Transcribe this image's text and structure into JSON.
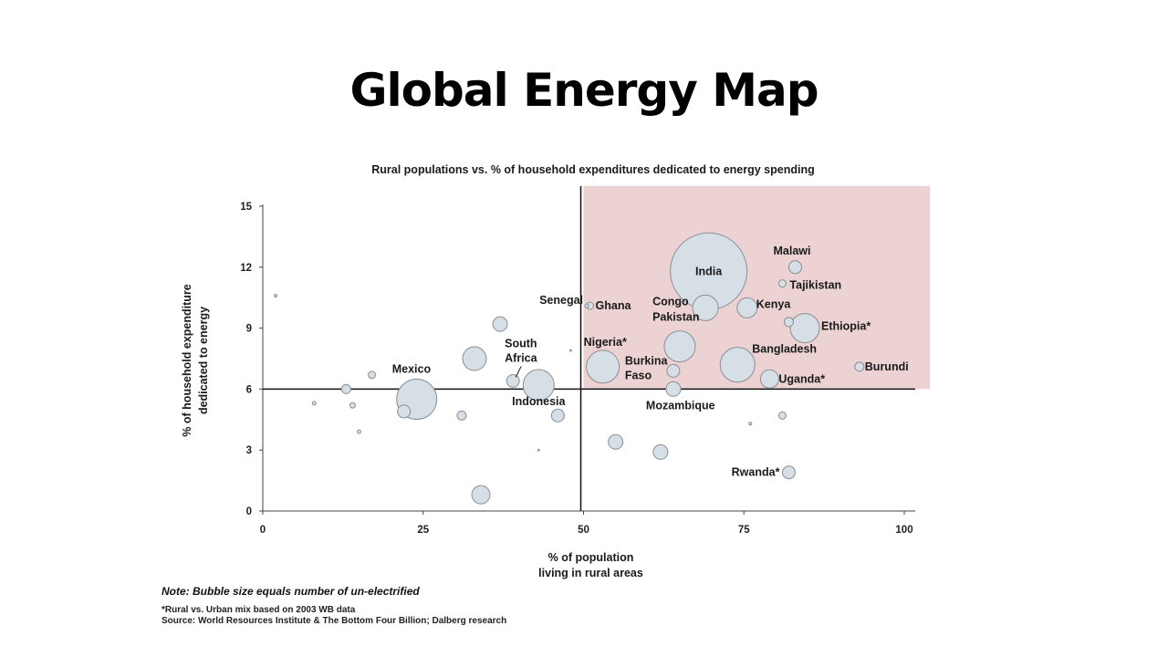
{
  "slide": {
    "title": "Global Energy Map"
  },
  "chart_data": {
    "type": "scatter",
    "title": "Rural populations vs. % of household expenditures dedicated to energy spending",
    "xlabel": [
      "% of population",
      "living in rural areas"
    ],
    "ylabel": [
      "% of household expenditure",
      "dedicated to energy"
    ],
    "xlim": [
      0,
      100
    ],
    "ylim": [
      0,
      15
    ],
    "xticks": [
      0,
      25,
      50,
      75,
      100
    ],
    "yticks": [
      0,
      3,
      6,
      9,
      12,
      15
    ],
    "grid": false,
    "divider_lines": {
      "x": 50,
      "y": 6
    },
    "highlight_region": {
      "x": [
        50,
        104
      ],
      "y": [
        6,
        16
      ],
      "color": "#ecd2d2"
    },
    "bubble_fill": "#d6dfe6",
    "bubble_stroke": "#8a8f94",
    "points": [
      {
        "label": "India",
        "x": 69.5,
        "y": 11.8,
        "size": 42
      },
      {
        "label": "Malawi",
        "x": 83,
        "y": 12.0,
        "size": 7
      },
      {
        "label": "Tajikistan",
        "x": 81,
        "y": 11.2,
        "size": 4
      },
      {
        "label": "Kenya",
        "x": 75.5,
        "y": 10.0,
        "size": 11
      },
      {
        "label": "Congo",
        "x": 69,
        "y": 10.0,
        "size": 14
      },
      {
        "label": "Pakistan",
        "x": 69,
        "y": 10.0,
        "size": 0
      },
      {
        "label": "Ethiopia*",
        "x": 84.5,
        "y": 9.0,
        "size": 16
      },
      {
        "label": "",
        "x": 82,
        "y": 9.3,
        "size": 5
      },
      {
        "label": "Ghana",
        "x": 51,
        "y": 10.1,
        "size": 4
      },
      {
        "label": "Senegal",
        "x": 50.5,
        "y": 10.1,
        "size": 2
      },
      {
        "label": "Nigeria*",
        "x": 53,
        "y": 7.1,
        "size": 18
      },
      {
        "label": "Burkina Faso",
        "x": 64,
        "y": 6.9,
        "size": 7
      },
      {
        "label": "",
        "x": 65,
        "y": 8.1,
        "size": 17
      },
      {
        "label": "Bangladesh",
        "x": 74,
        "y": 7.2,
        "size": 19
      },
      {
        "label": "Uganda*",
        "x": 79,
        "y": 6.5,
        "size": 10
      },
      {
        "label": "Burundi",
        "x": 93,
        "y": 7.1,
        "size": 5
      },
      {
        "label": "Mozambique",
        "x": 64,
        "y": 6.0,
        "size": 8
      },
      {
        "label": "South Africa",
        "x": 39,
        "y": 6.4,
        "size": 7
      },
      {
        "label": "Indonesia",
        "x": 43,
        "y": 6.2,
        "size": 17
      },
      {
        "label": "Mexico",
        "x": 24,
        "y": 5.5,
        "size": 22
      },
      {
        "label": "",
        "x": 37,
        "y": 9.2,
        "size": 8
      },
      {
        "label": "",
        "x": 33,
        "y": 7.5,
        "size": 13
      },
      {
        "label": "",
        "x": 46,
        "y": 4.7,
        "size": 7
      },
      {
        "label": "",
        "x": 22,
        "y": 4.9,
        "size": 7
      },
      {
        "label": "",
        "x": 31,
        "y": 4.7,
        "size": 5
      },
      {
        "label": "",
        "x": 13,
        "y": 6.0,
        "size": 5
      },
      {
        "label": "",
        "x": 17,
        "y": 6.7,
        "size": 4
      },
      {
        "label": "",
        "x": 14,
        "y": 5.2,
        "size": 3
      },
      {
        "label": "",
        "x": 8,
        "y": 5.3,
        "size": 2
      },
      {
        "label": "",
        "x": 15,
        "y": 3.9,
        "size": 2
      },
      {
        "label": "",
        "x": 2,
        "y": 10.6,
        "size": 1.5
      },
      {
        "label": "",
        "x": 55,
        "y": 3.4,
        "size": 8
      },
      {
        "label": "",
        "x": 62,
        "y": 2.9,
        "size": 8
      },
      {
        "label": "",
        "x": 34,
        "y": 0.8,
        "size": 10
      },
      {
        "label": "",
        "x": 81,
        "y": 4.7,
        "size": 4
      },
      {
        "label": "",
        "x": 76,
        "y": 4.3,
        "size": 1.5
      },
      {
        "label": "",
        "x": 43,
        "y": 3.0,
        "size": 1
      },
      {
        "label": "",
        "x": 48,
        "y": 7.9,
        "size": 1
      },
      {
        "label": "Rwanda*",
        "x": 82,
        "y": 1.9,
        "size": 7
      }
    ],
    "note": "Note: Bubble size equals number of un-electrified",
    "footnotes": [
      "*Rural vs. Urban mix based on 2003 WB data",
      "Source: World Resources Institute & The Bottom Four Billion; Dalberg research"
    ]
  }
}
